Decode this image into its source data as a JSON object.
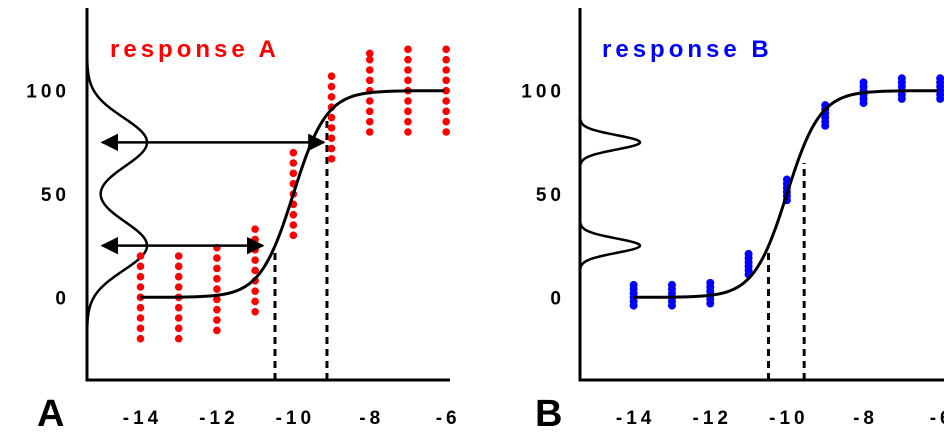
{
  "chart_data": [
    {
      "panel_label": "A",
      "title": "response A",
      "title_color": "#ff0000",
      "type": "scatter",
      "x_ticks": [
        -14,
        -12,
        -10,
        -8,
        -6
      ],
      "x_tick_labels": [
        "-14",
        "-12",
        "-10",
        "-8",
        "-6"
      ],
      "y_ticks": [
        0,
        50,
        100
      ],
      "y_tick_labels": [
        "0",
        "50",
        "100"
      ],
      "xlim": [
        -15.4,
        -5.9
      ],
      "ylim": [
        -40,
        140
      ],
      "grid": false,
      "point_color": "#ff0000",
      "points": {
        "x": [
          -14,
          -13,
          -12,
          -11,
          -10,
          -9,
          -8,
          -7,
          -6
        ],
        "y_sets": [
          [
            -20,
            -15,
            -10,
            -5,
            0,
            5,
            10,
            15,
            20
          ],
          [
            -20,
            -15,
            -10,
            -5,
            0,
            5,
            10,
            15,
            20
          ],
          [
            -16,
            -11,
            -6,
            -1,
            4,
            9,
            14,
            19,
            24
          ],
          [
            -7,
            -2,
            3,
            8,
            13,
            18,
            23,
            28,
            33
          ],
          [
            30,
            35,
            40,
            45,
            50,
            55,
            60,
            65,
            70
          ],
          [
            67,
            72,
            77,
            82,
            87,
            92,
            97,
            102,
            107
          ],
          [
            80,
            85,
            90,
            95,
            100,
            105,
            110,
            115,
            118
          ],
          [
            80,
            85,
            90,
            95,
            100,
            105,
            110,
            115,
            120
          ],
          [
            80,
            85,
            90,
            95,
            100,
            105,
            110,
            115,
            120
          ]
        ]
      },
      "curve": {
        "type": "sigmoid",
        "bottom": 0,
        "top": 100,
        "logEC50": -10,
        "hillslope": 1
      },
      "density": {
        "type": "bimodal",
        "centers": [
          25,
          75
        ],
        "sd": 12,
        "y_range": [
          -40,
          140
        ]
      },
      "arrows": [
        {
          "y": 75,
          "x_from": -15.0,
          "x_to": -9.2
        },
        {
          "y": 25,
          "x_from": -15.0,
          "x_to": -10.8
        }
      ],
      "dashed_lines": [
        {
          "x": -10.48,
          "y_from": -40,
          "y_to": 23
        },
        {
          "x": -9.12,
          "y_from": -40,
          "y_to": 88
        }
      ]
    },
    {
      "panel_label": "B",
      "title": "response B",
      "title_color": "#0000ff",
      "type": "scatter",
      "x_ticks": [
        -14,
        -12,
        -10,
        -8,
        -6
      ],
      "x_tick_labels": [
        "-14",
        "-12",
        "-10",
        "-8",
        "-6"
      ],
      "y_ticks": [
        0,
        50,
        100
      ],
      "y_tick_labels": [
        "0",
        "50",
        "100"
      ],
      "xlim": [
        -15.4,
        -5.9
      ],
      "ylim": [
        -40,
        140
      ],
      "grid": false,
      "point_color": "#0000ff",
      "points": {
        "x": [
          -14,
          -13,
          -12,
          -11,
          -10,
          -9,
          -8,
          -7,
          -6
        ],
        "y_sets": [
          [
            -4,
            -2,
            0,
            2,
            4,
            6
          ],
          [
            -4,
            -2,
            0,
            2,
            4,
            6
          ],
          [
            -3,
            -1,
            1,
            3,
            5,
            7
          ],
          [
            11,
            13,
            15,
            17,
            19,
            21
          ],
          [
            47,
            49,
            51,
            53,
            55,
            57
          ],
          [
            83,
            85,
            87,
            89,
            91,
            93
          ],
          [
            94,
            96,
            98,
            100,
            102,
            104
          ],
          [
            96,
            98,
            100,
            102,
            104,
            106
          ],
          [
            96,
            98,
            100,
            102,
            104,
            106
          ]
        ]
      },
      "curve": {
        "type": "sigmoid",
        "bottom": 0,
        "top": 100,
        "logEC50": -10,
        "hillslope": 1
      },
      "density": {
        "type": "bimodal",
        "centers": [
          25,
          75
        ],
        "sd": 3.5,
        "y_range": [
          -40,
          140
        ]
      },
      "arrows": [],
      "dashed_lines": [
        {
          "x": -10.48,
          "y_from": -40,
          "y_to": 23
        },
        {
          "x": -9.55,
          "y_from": -40,
          "y_to": 65
        }
      ]
    }
  ]
}
